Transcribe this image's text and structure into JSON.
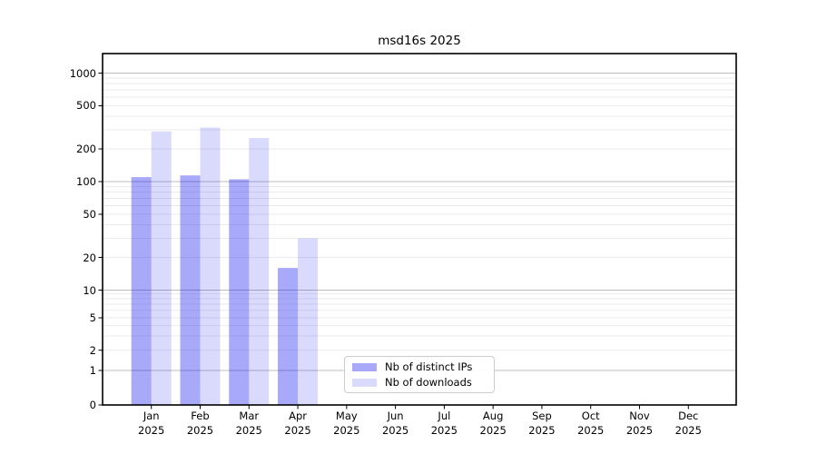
{
  "chart_data": {
    "type": "bar",
    "title": "msd16s 2025",
    "xlabel": "",
    "ylabel": "",
    "yscale": "symlog",
    "grid": true,
    "ylim": [
      0,
      1500
    ],
    "yticks": [
      0,
      1,
      2,
      5,
      10,
      20,
      50,
      100,
      200,
      500,
      1000
    ],
    "categories": [
      "Jan 2025",
      "Feb 2025",
      "Mar 2025",
      "Apr 2025",
      "May 2025",
      "Jun 2025",
      "Jul 2025",
      "Aug 2025",
      "Sep 2025",
      "Oct 2025",
      "Nov 2025",
      "Dec 2025"
    ],
    "series": [
      {
        "name": "Nb of distinct IPs",
        "color": "#0a0af0",
        "alpha": 0.35,
        "values": [
          110,
          114,
          105,
          16,
          0,
          0,
          0,
          0,
          0,
          0,
          0,
          0
        ]
      },
      {
        "name": "Nb of downloads",
        "color": "#0a0af0",
        "alpha": 0.15,
        "values": [
          290,
          315,
          252,
          30,
          0,
          0,
          0,
          0,
          0,
          0,
          0,
          0
        ]
      }
    ],
    "legend_position": "lower center"
  },
  "colors": {
    "major_grid": "#bcbcbc",
    "minor_grid": "#e9e9e9",
    "axis": "#000000"
  }
}
